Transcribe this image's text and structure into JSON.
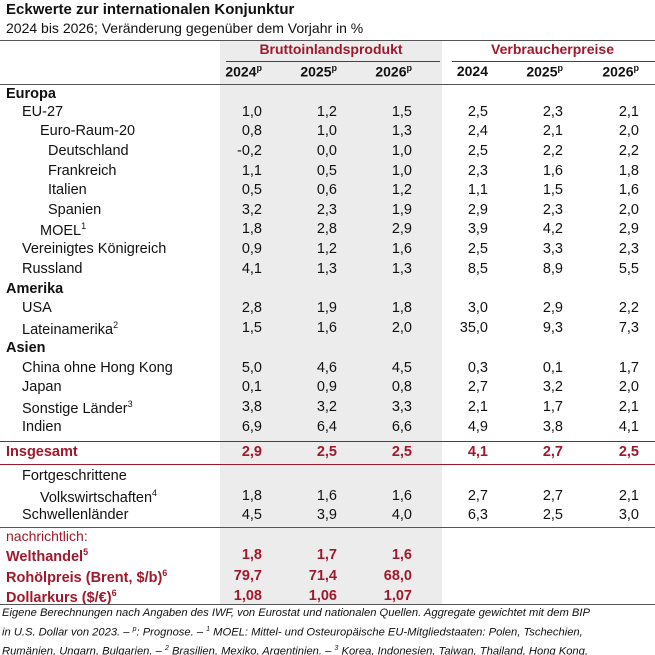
{
  "title": "Eckwerte zur internationalen Konjunktur",
  "subtitle": "2024 bis 2026; Veränderung gegenüber dem Vorjahr in %",
  "groups": {
    "gdp": "Bruttoinlandsprodukt",
    "cpi": "Verbraucherpreise"
  },
  "years": {
    "gdp": [
      {
        "y": "2024",
        "s": "p"
      },
      {
        "y": "2025",
        "s": "p"
      },
      {
        "y": "2026",
        "s": "p"
      }
    ],
    "cpi": [
      {
        "y": "2024",
        "s": ""
      },
      {
        "y": "2025",
        "s": "p"
      },
      {
        "y": "2026",
        "s": "p"
      }
    ]
  },
  "rows": [
    {
      "label": "Europa",
      "indent": 0,
      "kind": "head",
      "v": []
    },
    {
      "label": "EU-27",
      "indent": 1,
      "kind": "normal",
      "v": [
        "1,0",
        "1,2",
        "1,5",
        "2,5",
        "2,3",
        "2,1"
      ]
    },
    {
      "label": "Euro-Raum-20",
      "indent": 2,
      "kind": "normal",
      "v": [
        "0,8",
        "1,0",
        "1,3",
        "2,4",
        "2,1",
        "2,0"
      ]
    },
    {
      "label": "Deutschland",
      "indent": 3,
      "kind": "normal",
      "v": [
        "-0,2",
        "0,0",
        "1,0",
        "2,5",
        "2,2",
        "2,2"
      ]
    },
    {
      "label": "Frankreich",
      "indent": 3,
      "kind": "normal",
      "v": [
        "1,1",
        "0,5",
        "1,0",
        "2,3",
        "1,6",
        "1,8"
      ]
    },
    {
      "label": "Italien",
      "indent": 3,
      "kind": "normal",
      "v": [
        "0,5",
        "0,6",
        "1,2",
        "1,1",
        "1,5",
        "1,6"
      ]
    },
    {
      "label": "Spanien",
      "indent": 3,
      "kind": "normal",
      "v": [
        "3,2",
        "2,3",
        "1,9",
        "2,9",
        "2,3",
        "2,0"
      ]
    },
    {
      "label": "MOEL",
      "sup": "1",
      "indent": 2,
      "kind": "normal",
      "v": [
        "1,8",
        "2,8",
        "2,9",
        "3,9",
        "4,2",
        "2,9"
      ]
    },
    {
      "label": "Vereinigtes Königreich",
      "indent": 1,
      "kind": "normal",
      "v": [
        "0,9",
        "1,2",
        "1,6",
        "2,5",
        "3,3",
        "2,3"
      ]
    },
    {
      "label": "Russland",
      "indent": 1,
      "kind": "normal",
      "v": [
        "4,1",
        "1,3",
        "1,3",
        "8,5",
        "8,9",
        "5,5"
      ]
    },
    {
      "label": "Amerika",
      "indent": 0,
      "kind": "head",
      "v": []
    },
    {
      "label": "USA",
      "indent": 1,
      "kind": "normal",
      "v": [
        "2,8",
        "1,9",
        "1,8",
        "3,0",
        "2,9",
        "2,2"
      ]
    },
    {
      "label": "Lateinamerika",
      "sup": "2",
      "indent": 1,
      "kind": "normal",
      "v": [
        "1,5",
        "1,6",
        "2,0",
        "35,0",
        "9,3",
        "7,3"
      ]
    },
    {
      "label": "Asien",
      "indent": 0,
      "kind": "head",
      "v": []
    },
    {
      "label": "China ohne Hong Kong",
      "indent": 1,
      "kind": "normal",
      "v": [
        "5,0",
        "4,6",
        "4,5",
        "0,3",
        "0,1",
        "1,7"
      ]
    },
    {
      "label": "Japan",
      "indent": 1,
      "kind": "normal",
      "v": [
        "0,1",
        "0,9",
        "0,8",
        "2,7",
        "3,2",
        "2,0"
      ]
    },
    {
      "label": "Sonstige Länder",
      "sup": "3",
      "indent": 1,
      "kind": "normal",
      "v": [
        "3,8",
        "3,2",
        "3,3",
        "2,1",
        "1,7",
        "2,1"
      ]
    },
    {
      "label": "Indien",
      "indent": 1,
      "kind": "normal",
      "v": [
        "6,9",
        "6,4",
        "6,6",
        "4,9",
        "3,8",
        "4,1"
      ]
    },
    {
      "label": "Insgesamt",
      "indent": 0,
      "kind": "red",
      "v": [
        "2,9",
        "2,5",
        "2,5",
        "4,1",
        "2,7",
        "2,5"
      ]
    },
    {
      "label": "Fortgeschrittene",
      "indent": 1,
      "kind": "normal",
      "v": []
    },
    {
      "label": "Volkswirtschaften",
      "sup": "4",
      "indent": 2,
      "kind": "normal",
      "v": [
        "1,8",
        "1,6",
        "1,6",
        "2,7",
        "2,7",
        "2,1"
      ]
    },
    {
      "label": "Schwellenländer",
      "indent": 1,
      "kind": "normal",
      "v": [
        "4,5",
        "3,9",
        "4,0",
        "6,3",
        "2,5",
        "3,0"
      ]
    },
    {
      "label": "Welthandel",
      "sup": "5",
      "indent": 0,
      "kind": "red",
      "v": [
        "1,8",
        "1,7",
        "1,6"
      ]
    },
    {
      "label": "Rohölpreis (Brent, $/b)",
      "sup": "6",
      "indent": 0,
      "kind": "red",
      "v": [
        "79,7",
        "71,4",
        "68,0"
      ]
    },
    {
      "label": "Dollarkurs ($/€)",
      "sup": "6",
      "indent": 0,
      "kind": "red",
      "v": [
        "1,08",
        "1,06",
        "1,07"
      ]
    }
  ],
  "note_label": "nachrichtlich:",
  "footnotes": [
    {
      "t": "Eigene Berechnungen nach Angaben des IWF, von Eurostat und nationalen Quellen. Aggregate gewichtet mit dem BIP"
    },
    {
      "t": "in U.S. Dollar von 2023. – ",
      "s1": "p",
      "t2": ": Prognose. – ",
      "s2": "1",
      "t3": " MOEL: Mittel- und Osteuropäische EU-Mitgliedstaaten: Polen, Tschechien,"
    },
    {
      "t": "Rumänien, Ungarn, Bulgarien. – ",
      "s1": "2",
      "t2": " Brasilien, Mexiko, Argentinien. – ",
      "s2": "3",
      "t3": " Korea, Indonesien, Taiwan, Thailand, Hong Kong,"
    }
  ],
  "colors": {
    "accent": "#a0192b",
    "shade": "#ececec"
  }
}
